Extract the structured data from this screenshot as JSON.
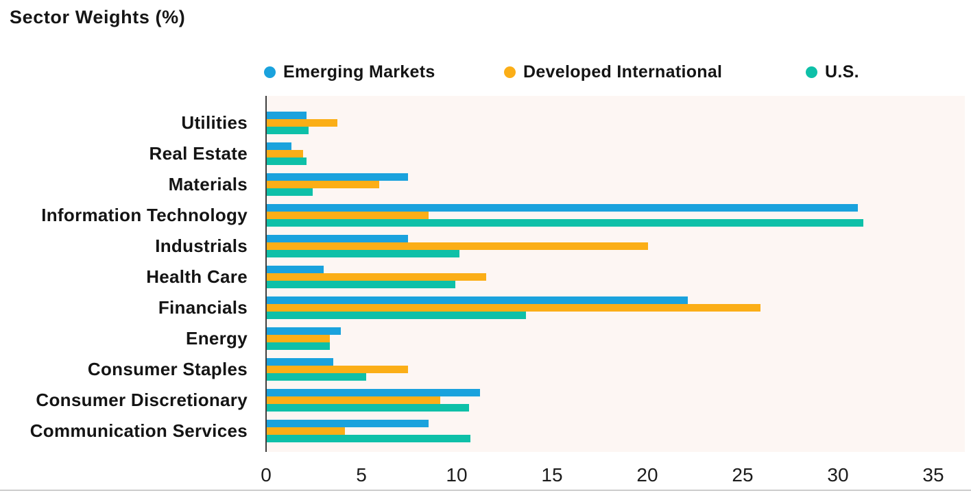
{
  "title": "Sector Weights (%)",
  "legend": [
    {
      "label": "Emerging Markets",
      "color": "#1AA2DD"
    },
    {
      "label": "Developed International",
      "color": "#FBAE17"
    },
    {
      "label": "U.S.",
      "color": "#0EC0A8"
    }
  ],
  "colors": {
    "emerging_markets": "#1AA2DD",
    "developed_international": "#FBAE17",
    "us": "#0EC0A8",
    "plot_background": "#FDF6F3",
    "axis_line": "#3d3d3d",
    "text": "#141414"
  },
  "chart_data": {
    "type": "bar",
    "orientation": "horizontal",
    "title": "Sector Weights (%)",
    "categories": [
      "Utilities",
      "Real Estate",
      "Materials",
      "Information Technology",
      "Industrials",
      "Health Care",
      "Financials",
      "Energy",
      "Consumer Staples",
      "Consumer Discretionary",
      "Communication Services"
    ],
    "series": [
      {
        "name": "Emerging Markets",
        "color": "#1AA2DD",
        "values": [
          2.1,
          1.3,
          7.4,
          31.0,
          7.4,
          3.0,
          22.1,
          3.9,
          3.5,
          11.2,
          8.5
        ]
      },
      {
        "name": "Developed International",
        "color": "#FBAE17",
        "values": [
          3.7,
          1.9,
          5.9,
          8.5,
          20.0,
          11.5,
          25.9,
          3.3,
          7.4,
          9.1,
          4.1
        ]
      },
      {
        "name": "U.S.",
        "color": "#0EC0A8",
        "values": [
          2.2,
          2.1,
          2.4,
          31.3,
          10.1,
          9.9,
          13.6,
          3.3,
          5.2,
          10.6,
          10.7
        ]
      }
    ],
    "xlim": [
      0,
      35
    ],
    "x_ticks": [
      0,
      5,
      10,
      15,
      20,
      25,
      30,
      35
    ],
    "grid": false,
    "legend_position": "top"
  }
}
